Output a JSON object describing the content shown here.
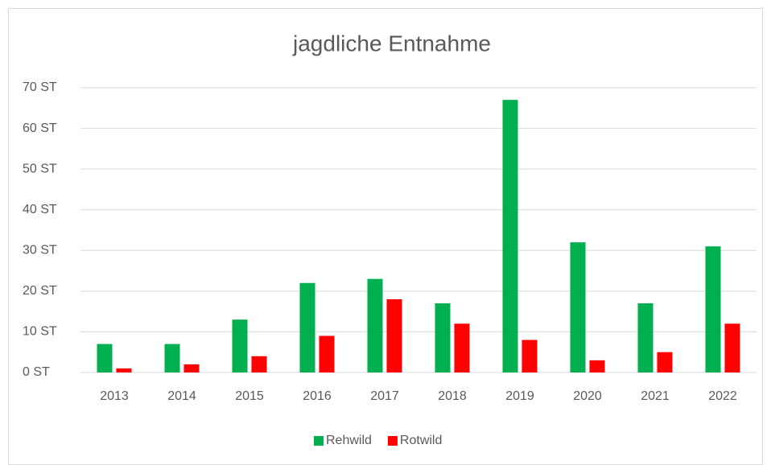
{
  "chart_data": {
    "type": "bar",
    "title": "jagdliche Entnahme",
    "categories": [
      "2013",
      "2014",
      "2015",
      "2016",
      "2017",
      "2018",
      "2019",
      "2020",
      "2021",
      "2022"
    ],
    "series": [
      {
        "name": "Rehwild",
        "color": "#00b050",
        "values": [
          7,
          7,
          13,
          22,
          23,
          17,
          67,
          32,
          17,
          31
        ]
      },
      {
        "name": "Rotwild",
        "color": "#ff0000",
        "values": [
          1,
          2,
          4,
          9,
          18,
          12,
          8,
          3,
          5,
          12
        ]
      }
    ],
    "ylim": [
      0,
      70
    ],
    "yticks": [
      {
        "value": 0,
        "label": "0 ST"
      },
      {
        "value": 10,
        "label": "10 ST"
      },
      {
        "value": 20,
        "label": "20 ST"
      },
      {
        "value": 30,
        "label": "30 ST"
      },
      {
        "value": 40,
        "label": "40 ST"
      },
      {
        "value": 50,
        "label": "50 ST"
      },
      {
        "value": 60,
        "label": "60 ST"
      },
      {
        "value": 70,
        "label": "70 ST"
      }
    ],
    "grid": true,
    "legend": "bottom"
  }
}
